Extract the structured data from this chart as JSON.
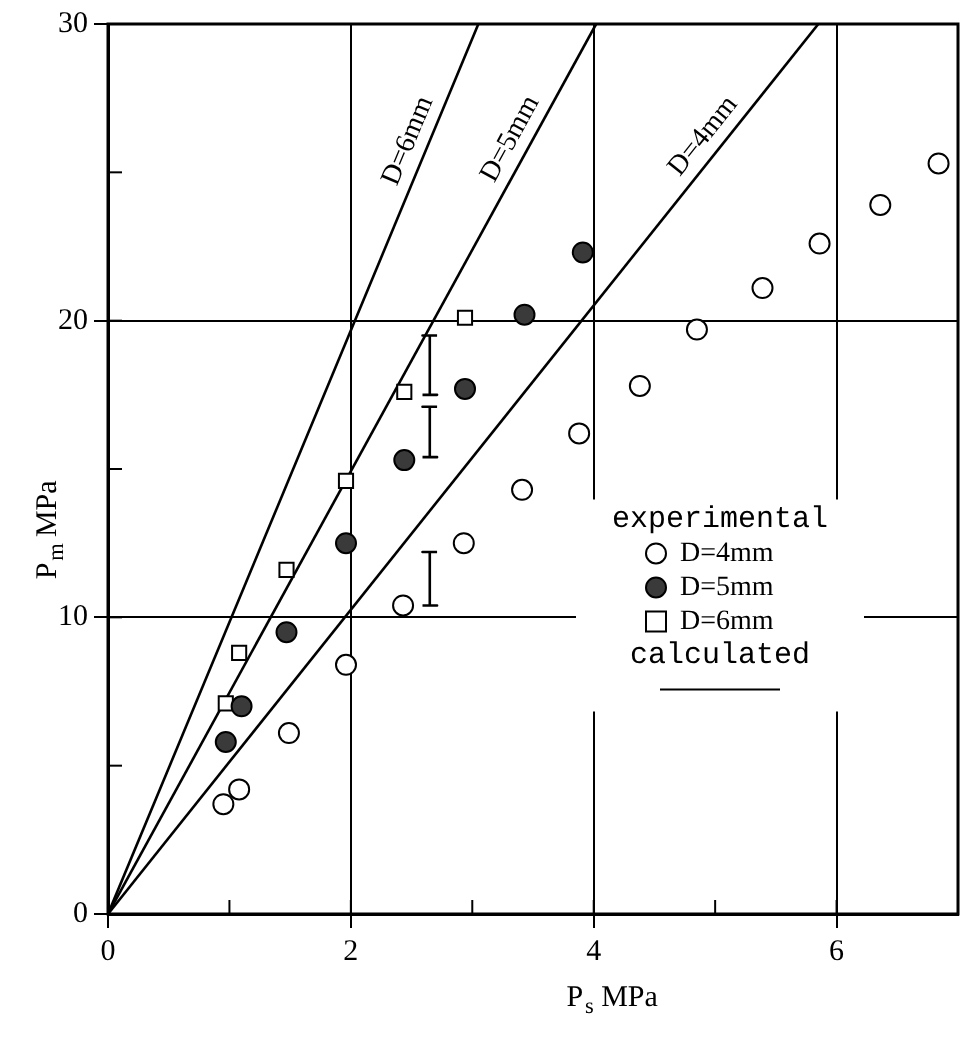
{
  "chart_data": {
    "type": "scatter",
    "xlabel": "P$_{s}$ MPa",
    "ylabel": "P$_{m}$ MPa",
    "legend_title": "experimental",
    "annotations": [
      "calculated"
    ],
    "xlim": [
      0,
      7
    ],
    "xticks": [
      0,
      {
        "value": 1,
        "label": null
      },
      2,
      {
        "value": 3,
        "label": null
      },
      4,
      {
        "value": 5,
        "label": null
      },
      6
    ],
    "ylim": [
      0,
      30
    ],
    "yticks": [
      0,
      {
        "value": 5,
        "label": null
      },
      10,
      {
        "value": 15,
        "label": null
      },
      20,
      {
        "value": 25,
        "label": null
      },
      30
    ],
    "grid": true,
    "legend": "right",
    "series": [
      {
        "name": "D=4mm",
        "marker": "circle",
        "color": "#ffffff",
        "x": [
          0.95,
          1.08,
          1.49,
          1.96,
          2.43,
          2.93,
          3.41,
          3.88,
          4.38,
          4.85,
          5.39,
          5.86,
          6.36,
          6.84
        ],
        "values": [
          3.7,
          4.2,
          6.1,
          8.4,
          10.4,
          12.5,
          14.3,
          16.2,
          17.8,
          19.7,
          21.1,
          22.6,
          23.9,
          25.3
        ]
      },
      {
        "name": "D=5mm",
        "marker": "circle",
        "color": "#3a3a3a",
        "x": [
          0.97,
          1.1,
          1.47,
          1.96,
          2.44,
          2.94,
          3.43,
          3.91
        ],
        "values": [
          5.8,
          7.0,
          9.5,
          12.5,
          15.3,
          17.7,
          20.2,
          22.3
        ]
      },
      {
        "name": "D=6mm",
        "marker": "square",
        "color": "#ffffff",
        "x": [
          0.97,
          1.08,
          1.47,
          1.96,
          2.44,
          2.94
        ],
        "values": [
          7.1,
          8.8,
          11.6,
          14.6,
          17.6,
          20.1
        ]
      },
      {
        "name": "D=6mm",
        "type": "line",
        "marker": "none",
        "line_style": "solid",
        "color": "#000000",
        "x": [
          0,
          3.05
        ],
        "values": [
          0,
          30
        ]
      },
      {
        "name": "D=5mm",
        "type": "line",
        "marker": "none",
        "line_style": "solid",
        "color": "#000000",
        "x": [
          0,
          4.02
        ],
        "values": [
          0,
          30
        ]
      },
      {
        "name": "D=4mm",
        "type": "line",
        "marker": "none",
        "line_style": "solid",
        "color": "#000000",
        "x": [
          0,
          5.85
        ],
        "values": [
          0,
          30
        ]
      },
      {
        "type": "line",
        "marker": "none",
        "line_style": "solid",
        "color": "#000000",
        "x": [
          2.59,
          2.71,
          2.65,
          2.65,
          2.59,
          2.71
        ],
        "values": [
          10.4,
          10.4,
          10.4,
          12.2,
          12.2,
          12.2
        ]
      },
      {
        "type": "line",
        "marker": "none",
        "line_style": "solid",
        "color": "#000000",
        "x": [
          2.59,
          2.71,
          2.65,
          2.65,
          2.59,
          2.71
        ],
        "values": [
          15.4,
          15.4,
          15.4,
          17.1,
          17.1,
          17.1
        ]
      },
      {
        "type": "line",
        "marker": "none",
        "line_style": "solid",
        "color": "#000000",
        "x": [
          2.59,
          2.71,
          2.65,
          2.65,
          2.59,
          2.71
        ],
        "values": [
          17.5,
          17.5,
          17.5,
          19.5,
          19.5,
          19.5
        ]
      }
    ]
  }
}
